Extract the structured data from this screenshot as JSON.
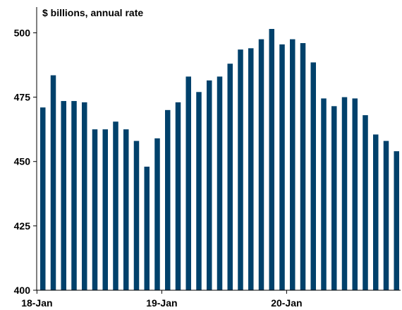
{
  "chart_data": {
    "type": "bar",
    "ylabel": "$ billions, annual rate",
    "xlabel": "",
    "title": "",
    "ylim": [
      400,
      510
    ],
    "yticks": [
      400,
      425,
      450,
      475,
      500
    ],
    "xtick_labels": [
      {
        "label": "18-Jan",
        "index": 0
      },
      {
        "label": "19-Jan",
        "index": 12
      },
      {
        "label": "20-Jan",
        "index": 24
      }
    ],
    "categories": [
      "2018-01",
      "2018-02",
      "2018-03",
      "2018-04",
      "2018-05",
      "2018-06",
      "2018-07",
      "2018-08",
      "2018-09",
      "2018-10",
      "2018-11",
      "2018-12",
      "2019-01",
      "2019-02",
      "2019-03",
      "2019-04",
      "2019-05",
      "2019-06",
      "2019-07",
      "2019-08",
      "2019-09",
      "2019-10",
      "2019-11",
      "2019-12",
      "2020-01",
      "2020-02",
      "2020-03",
      "2020-04",
      "2020-05",
      "2020-06",
      "2020-07",
      "2020-08",
      "2020-09",
      "2020-10",
      "2020-11"
    ],
    "values": [
      471,
      483.5,
      473.5,
      473.5,
      473,
      462.5,
      462.5,
      465.5,
      462.5,
      458,
      448,
      459,
      470,
      473,
      483,
      477,
      481.5,
      483,
      488,
      493.5,
      494,
      497.5,
      501.5,
      495.5,
      497.5,
      496,
      488.5,
      474.5,
      471.5,
      475,
      474.5,
      468,
      460.5,
      458,
      454
    ],
    "bar_color": "#00416b",
    "grid": false
  }
}
